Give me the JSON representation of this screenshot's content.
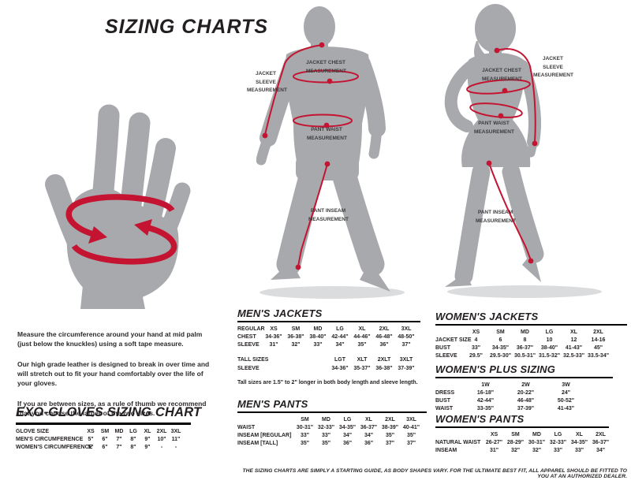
{
  "page": {
    "title": "SIZING CHARTS",
    "disclaimer": "THE SIZING CHARTS ARE SIMPLY A STARTING GUIDE, AS BODY SHAPES VARY. FOR THE ULTIMATE BEST FIT, ALL APPAREL SHOULD BE FITTED TO YOU AT AN AUTHORIZED DEALER."
  },
  "intro": {
    "paragraphs": [
      "Measure the circumference around your hand at mid palm (just below the knuckles) using a soft tape measure.",
      "Our high grade leather is designed to break in over time and will stretch out to fit your hand comfortably over the life of your gloves.",
      "If you are between sizes, as a rule of thumb we recommend that you choose the larger of the two sizes."
    ]
  },
  "figures": {
    "male": {
      "labels": {
        "sleeve": "JACKET SLEEVE MEASUREMENT",
        "chest": "JACKET CHEST MEASUREMENT",
        "waist": "PANT WAIST MEASUREMENT",
        "inseam": "PANT INSEAM MEASUREMENT"
      }
    },
    "female": {
      "labels": {
        "sleeve": "JACKET SLEEVE MEASUREMENT",
        "chest": "JACKET CHEST MEASUREMENT",
        "waist": "PANT WAIST MEASUREMENT",
        "inseam": "PANT INSEAM MEASUREMENT"
      }
    }
  },
  "tables": {
    "gloves": {
      "title": "EXO-GLOVES SIZING CHART",
      "header_label": "GLOVE SIZE",
      "columns": [
        "XS",
        "SM",
        "MD",
        "LG",
        "XL",
        "2XL",
        "3XL"
      ],
      "rows": [
        {
          "label": "MEN'S CIRCUMFERENCE",
          "values": [
            "5\"",
            "6\"",
            "7\"",
            "8\"",
            "9\"",
            "10\"",
            "11\""
          ]
        },
        {
          "label": "WOMEN'S CIRCUMFERENCE",
          "values": [
            "5\"",
            "6\"",
            "7\"",
            "8\"",
            "9\"",
            "-",
            "-"
          ]
        }
      ]
    },
    "mens_jackets": {
      "title": "MEN'S JACKETS",
      "header_label": "REGULAR",
      "columns": [
        "XS",
        "SM",
        "MD",
        "LG",
        "XL",
        "2XL",
        "3XL"
      ],
      "rows": [
        {
          "label": "CHEST",
          "values": [
            "34-36\"",
            "36-38\"",
            "38-40\"",
            "42-44\"",
            "44-46\"",
            "46-48\"",
            "48-50\""
          ]
        },
        {
          "label": "SLEEVE",
          "values": [
            "31\"",
            "32\"",
            "33\"",
            "34\"",
            "35\"",
            "36\"",
            "37\""
          ]
        }
      ],
      "tall": {
        "header_label": "TALL SIZES",
        "columns": [
          "LGT",
          "XLT",
          "2XLT",
          "3XLT"
        ],
        "rows": [
          {
            "label": "SLEEVE",
            "values": [
              "34-36\"",
              "35-37\"",
              "36-38\"",
              "37-39\""
            ]
          }
        ]
      },
      "note": "Tall sizes are 1.5\" to 2\" longer in both body length and sleeve length."
    },
    "mens_pants": {
      "title": "MEN'S PANTS",
      "header_label": "",
      "columns": [
        "SM",
        "MD",
        "LG",
        "XL",
        "2XL",
        "3XL"
      ],
      "rows": [
        {
          "label": "WAIST",
          "values": [
            "30-31\"",
            "32-33\"",
            "34-35\"",
            "36-37\"",
            "38-39\"",
            "40-41\""
          ]
        },
        {
          "label": "INSEAM [REGULAR]",
          "values": [
            "33\"",
            "33\"",
            "34\"",
            "34\"",
            "35\"",
            "35\""
          ]
        },
        {
          "label": "INSEAM [TALL]",
          "values": [
            "35\"",
            "35\"",
            "36\"",
            "36\"",
            "37\"",
            "37\""
          ]
        }
      ]
    },
    "womens_jackets": {
      "title": "WOMEN'S JACKETS",
      "header_label": "",
      "columns": [
        "XS",
        "SM",
        "MD",
        "LG",
        "XL",
        "2XL"
      ],
      "rows": [
        {
          "label": "JACKET SIZE",
          "values": [
            "4",
            "6",
            "8",
            "10",
            "12",
            "14-16"
          ]
        },
        {
          "label": "BUST",
          "values": [
            "33\"",
            "34-35\"",
            "36-37\"",
            "38-40\"",
            "41-43\"",
            "45\""
          ]
        },
        {
          "label": "SLEEVE",
          "values": [
            "29.5\"",
            "29.5-30\"",
            "30.5-31\"",
            "31.5-32\"",
            "32.5-33\"",
            "33.5-34\""
          ]
        }
      ]
    },
    "womens_plus": {
      "title": "WOMEN'S PLUS SIZING",
      "header_label": "",
      "columns": [
        "1W",
        "2W",
        "3W"
      ],
      "rows": [
        {
          "label": "DRESS",
          "values": [
            "16-18\"",
            "20-22\"",
            "24\""
          ]
        },
        {
          "label": "BUST",
          "values": [
            "42-44\"",
            "46-48\"",
            "50-52\""
          ]
        },
        {
          "label": "WAIST",
          "values": [
            "33-35\"",
            "37-39\"",
            "41-43\""
          ]
        }
      ]
    },
    "womens_pants": {
      "title": "WOMEN'S PANTS",
      "header_label": "",
      "columns": [
        "XS",
        "SM",
        "MD",
        "LG",
        "XL",
        "2XL"
      ],
      "rows": [
        {
          "label": "NATURAL WAIST",
          "values": [
            "26-27\"",
            "28-29\"",
            "30-31\"",
            "32-33\"",
            "34-35\"",
            "36-37\""
          ]
        },
        {
          "label": "INSEAM",
          "values": [
            "31\"",
            "32\"",
            "32\"",
            "33\"",
            "33\"",
            "34\""
          ]
        }
      ]
    }
  },
  "colors": {
    "accent_red": "#c41432",
    "body_gray": "#a7a9ac",
    "text_black": "#231f20"
  }
}
